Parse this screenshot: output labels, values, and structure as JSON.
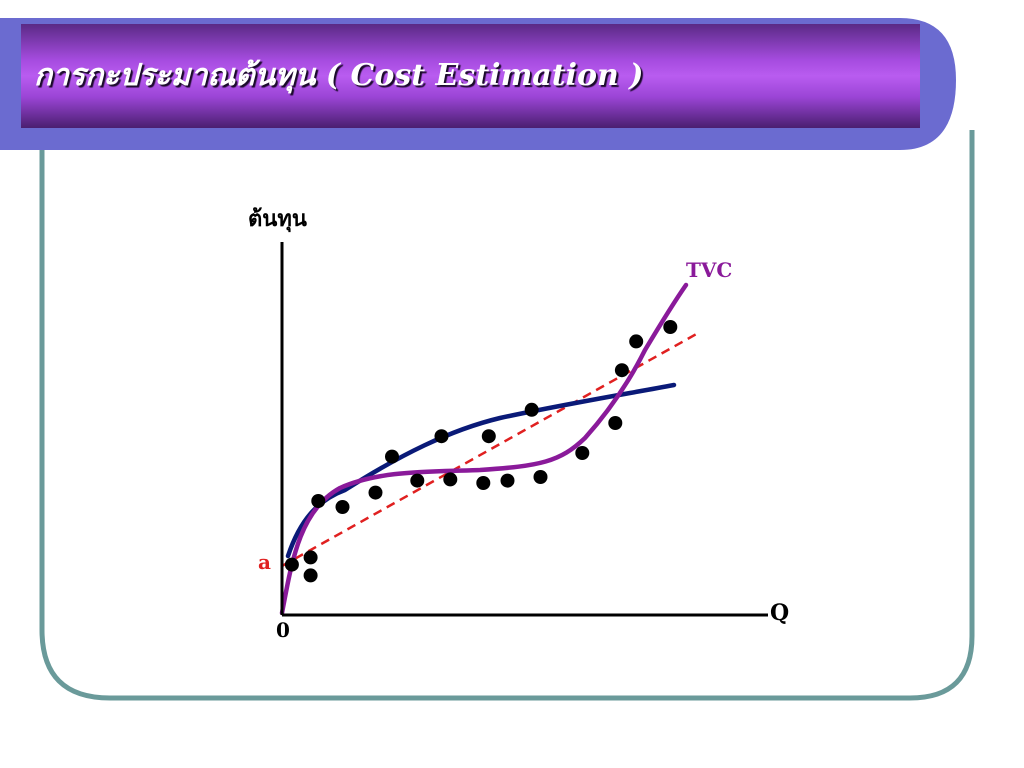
{
  "slide": {
    "title": "การกะประมาณต้นทุน ( Cost Estimation )"
  },
  "colors": {
    "frame_blue": "#6b6bd0",
    "frame_teal": "#6a9a9a",
    "title_purple": "#b15ae8",
    "tvc_curve": "#8a1a9a",
    "blue_curve": "#0a1a78",
    "linear_fit": "#e02020",
    "points": "#000000",
    "axis": "#000000"
  },
  "chart_data": {
    "type": "scatter",
    "ylabel": "ต้นทุน",
    "xlabel": "Q",
    "origin_label": "0",
    "intercept_label": "a",
    "axis_ticks": "none",
    "grid": false,
    "series": [
      {
        "name": "TVC",
        "kind": "cubic-curve"
      },
      {
        "kind": "concave-curve"
      },
      {
        "kind": "linear-fit",
        "style": "dashed"
      }
    ],
    "points": [
      {
        "x": 0.9,
        "y": 4.2
      },
      {
        "x": 2.6,
        "y": 4.8
      },
      {
        "x": 2.6,
        "y": 3.3
      },
      {
        "x": 3.3,
        "y": 9.5
      },
      {
        "x": 5.5,
        "y": 9.0
      },
      {
        "x": 8.5,
        "y": 10.2
      },
      {
        "x": 10.0,
        "y": 13.2
      },
      {
        "x": 12.3,
        "y": 11.2
      },
      {
        "x": 14.5,
        "y": 14.9
      },
      {
        "x": 15.3,
        "y": 11.3
      },
      {
        "x": 18.3,
        "y": 11.0
      },
      {
        "x": 18.8,
        "y": 14.9
      },
      {
        "x": 20.5,
        "y": 11.2
      },
      {
        "x": 23.5,
        "y": 11.5
      },
      {
        "x": 22.7,
        "y": 17.1
      },
      {
        "x": 27.3,
        "y": 13.5
      },
      {
        "x": 30.3,
        "y": 16.0
      },
      {
        "x": 30.9,
        "y": 20.4
      },
      {
        "x": 32.2,
        "y": 22.8
      },
      {
        "x": 35.3,
        "y": 24.0
      }
    ],
    "xlim": [
      0,
      42
    ],
    "ylim": [
      0,
      27
    ]
  }
}
